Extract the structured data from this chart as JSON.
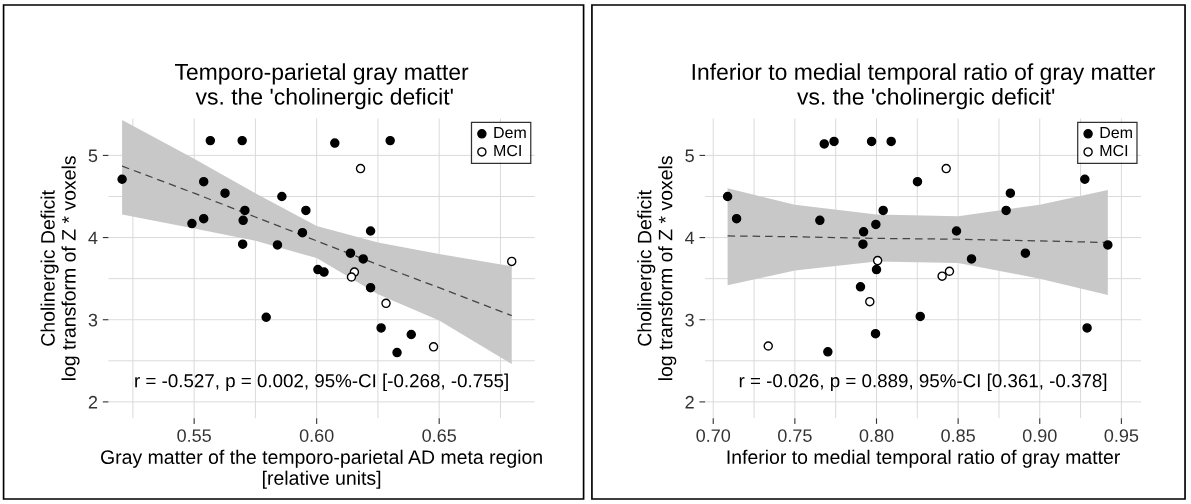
{
  "chart_data": [
    {
      "type": "scatter",
      "title": "Temporo-parietal gray matter\n vs. the 'cholinergic deficit'",
      "xlabel": "Gray matter of the temporo-parietal AD meta region\n[relative units]",
      "ylabel": "Cholinergic Deficit\nlog transform of Z * voxels",
      "xlim": [
        0.515,
        0.689
      ],
      "ylim": [
        1.8,
        5.45
      ],
      "xticks": [
        {
          "value": 0.55,
          "label": "0.55"
        },
        {
          "value": 0.6,
          "label": "0.60"
        },
        {
          "value": 0.65,
          "label": "0.65"
        }
      ],
      "yticks": [
        2,
        3,
        4,
        5
      ],
      "grid": true,
      "legend": "top right",
      "annotations": [
        "r = -0.527, p = 0.002, 95%-CI [-0.268, -0.755]"
      ],
      "series": [
        {
          "name": "Dem",
          "color": "#000000",
          "marker": "circle",
          "x": [
            0.5206,
            0.5566,
            0.5696,
            0.6074,
            0.63,
            0.5539,
            0.5626,
            0.5858,
            0.5707,
            0.5956,
            0.5491,
            0.5539,
            0.57,
            0.5942,
            0.622,
            0.5698,
            0.584,
            0.6138,
            0.619,
            0.6005,
            0.603,
            0.622,
            0.5794,
            0.6263,
            0.6328,
            0.6386
          ],
          "values": [
            4.71,
            5.18,
            5.18,
            5.15,
            5.18,
            4.68,
            4.54,
            4.5,
            4.33,
            4.33,
            4.17,
            4.23,
            4.21,
            4.06,
            4.08,
            3.92,
            3.91,
            3.81,
            3.74,
            3.61,
            3.58,
            3.39,
            3.03,
            2.9,
            2.6,
            2.82
          ]
        },
        {
          "name": "MCI",
          "color": "#ffffff",
          "marker": "circle",
          "x": [
            0.6179,
            0.6154,
            0.6142,
            0.6283,
            0.6477,
            0.6796
          ],
          "values": [
            4.84,
            3.58,
            3.52,
            3.2,
            2.67,
            3.71
          ]
        },
        {
          "type": "line",
          "color": "#444444",
          "line_style": "dashed",
          "x": [
            0.5206,
            0.55,
            0.575,
            0.6,
            0.625,
            0.65,
            0.6796
          ],
          "values": [
            4.87,
            4.54,
            4.25,
            3.96,
            3.67,
            3.39,
            3.05
          ],
          "lower": [
            4.28,
            4.11,
            3.96,
            3.75,
            3.31,
            2.99,
            2.46
          ],
          "upper": [
            5.43,
            4.96,
            4.54,
            4.14,
            3.94,
            3.8,
            3.65
          ]
        }
      ]
    },
    {
      "type": "scatter",
      "title": "Inferior to medial temporal ratio of gray matter\n vs. the 'cholinergic deficit'",
      "xlabel": "Inferior to medial temporal ratio of gray matter",
      "ylabel": "Cholinergic Deficit\nlog transform of Z * voxels",
      "xlim": [
        0.695,
        0.962
      ],
      "ylim": [
        1.8,
        5.45
      ],
      "xticks": [
        {
          "value": 0.7,
          "label": "0.70"
        },
        0.75,
        {
          "value": 0.8,
          "label": "0.80"
        },
        0.85,
        {
          "value": 0.9,
          "label": "0.90"
        },
        0.95
      ],
      "yticks": [
        2,
        3,
        4,
        5
      ],
      "grid": true,
      "legend": "top right",
      "annotations": [
        "r = -0.026, p = 0.889, 95%-CI [0.361, -0.378]"
      ],
      "series": [
        {
          "name": "Dem",
          "color": "#000000",
          "marker": "circle",
          "x": [
            0.7088,
            0.7143,
            0.7653,
            0.7996,
            0.8041,
            0.7921,
            0.7917,
            0.8,
            0.7902,
            0.8268,
            0.7994,
            0.7702,
            0.8251,
            0.882,
            0.8794,
            0.849,
            0.8582,
            0.8912,
            0.9276,
            0.9417,
            0.929,
            0.768,
            0.774,
            0.797,
            0.809
          ],
          "values": [
            4.5,
            4.23,
            4.21,
            4.16,
            4.33,
            4.07,
            3.92,
            3.61,
            3.4,
            3.04,
            2.83,
            2.61,
            4.68,
            4.54,
            4.33,
            4.08,
            3.74,
            3.81,
            4.71,
            3.91,
            2.9,
            5.14,
            5.17,
            5.17,
            5.17
          ]
        },
        {
          "name": "MCI",
          "color": "#ffffff",
          "marker": "circle",
          "x": [
            0.8007,
            0.7959,
            0.7337,
            0.8427,
            0.8447,
            0.8402
          ],
          "values": [
            3.72,
            3.22,
            2.68,
            4.84,
            3.59,
            3.53
          ]
        },
        {
          "type": "line",
          "color": "#444444",
          "line_style": "dashed",
          "x": [
            0.7088,
            0.75,
            0.8,
            0.85,
            0.9,
            0.9417
          ],
          "values": [
            4.02,
            4.01,
            3.99,
            3.98,
            3.96,
            3.94
          ],
          "lower": [
            3.42,
            3.6,
            3.71,
            3.69,
            3.5,
            3.3
          ],
          "upper": [
            4.6,
            4.4,
            4.28,
            4.26,
            4.4,
            4.58
          ]
        }
      ]
    }
  ]
}
